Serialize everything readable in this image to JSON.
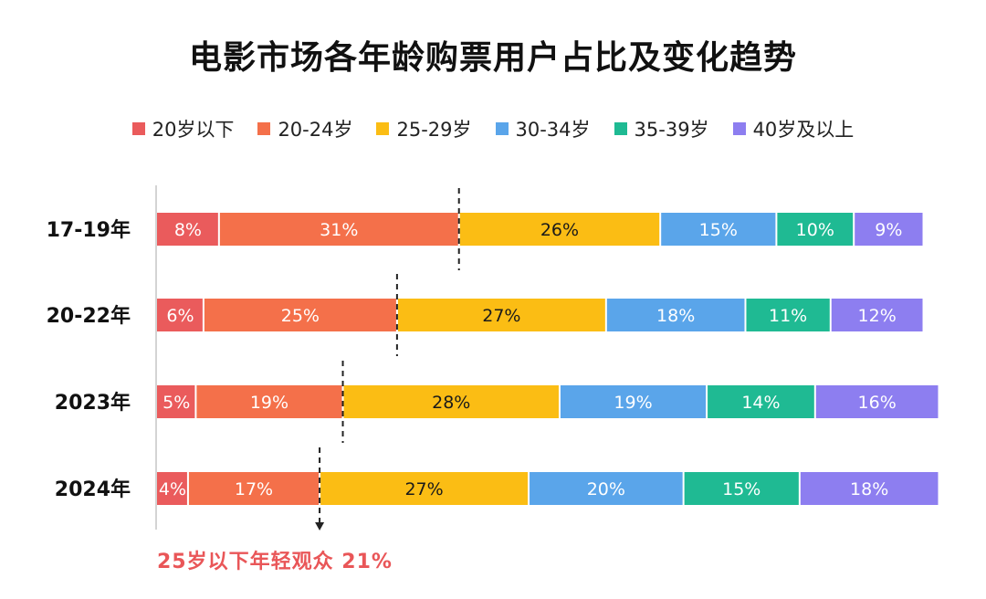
{
  "chart_data": {
    "type": "bar",
    "orientation": "horizontal-stacked",
    "title": "电影市场各年龄购票用户占比及变化趋势",
    "categories": [
      "17-19年",
      "20-22年",
      "2023年",
      "2024年"
    ],
    "series": [
      {
        "name": "20岁以下",
        "color": "#ea5b5c",
        "values": [
          8,
          6,
          5,
          4
        ]
      },
      {
        "name": "20-24岁",
        "color": "#f4704a",
        "values": [
          31,
          25,
          19,
          17
        ]
      },
      {
        "name": "25-29岁",
        "color": "#fbbd14",
        "values": [
          26,
          27,
          28,
          27
        ]
      },
      {
        "name": "30-34岁",
        "color": "#5aa5ea",
        "values": [
          15,
          18,
          19,
          20
        ]
      },
      {
        "name": "35-39岁",
        "color": "#1fba93",
        "values": [
          10,
          11,
          14,
          15
        ]
      },
      {
        "name": "40岁及以上",
        "color": "#8d7ef0",
        "values": [
          9,
          12,
          16,
          18
        ]
      }
    ],
    "value_suffix": "%",
    "xlim": [
      0,
      100
    ],
    "legend_position": "top-center",
    "reference_lines": "dashed line at the 20-24岁 / 25-29岁 boundary of each bar",
    "annotation": "25岁以下年轻观众 21%"
  }
}
